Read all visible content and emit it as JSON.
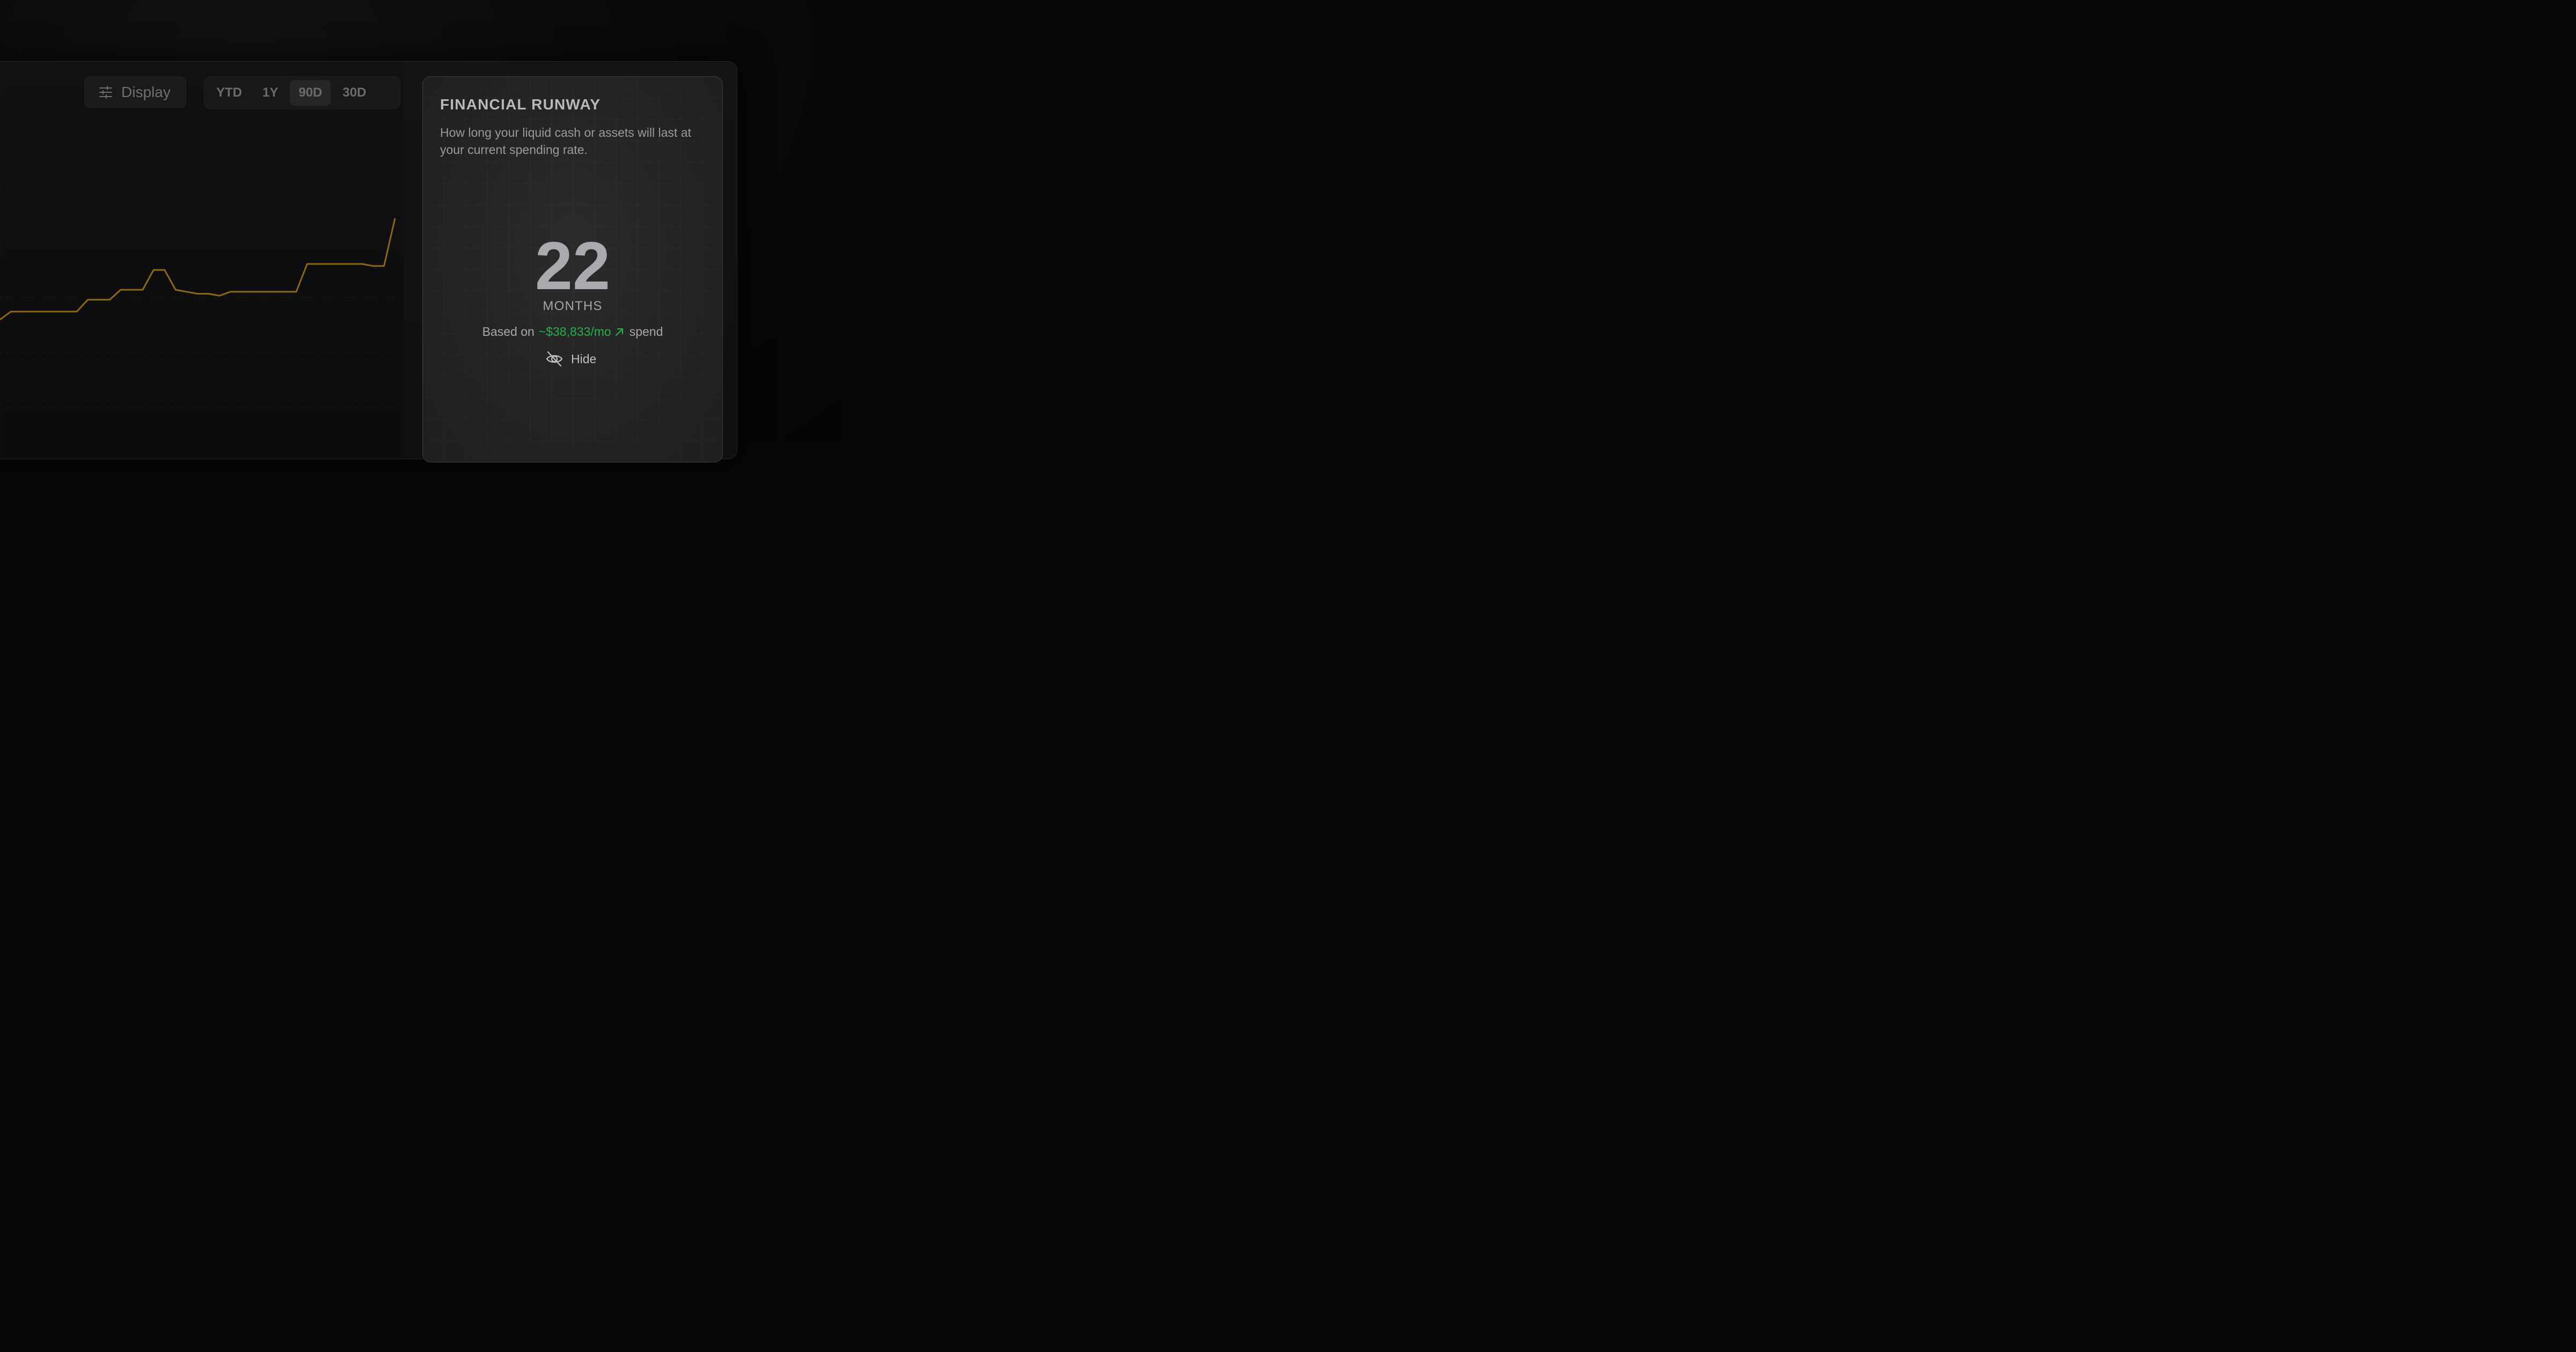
{
  "toolbar": {
    "display_label": "Display",
    "ranges": [
      {
        "label": "YTD",
        "active": false
      },
      {
        "label": "1Y",
        "active": false
      },
      {
        "label": "90D",
        "active": true
      },
      {
        "label": "30D",
        "active": false
      }
    ]
  },
  "chart_data": {
    "type": "line",
    "color": "#8a6a0c",
    "values": [
      0.12,
      0.16,
      0.16,
      0.16,
      0.16,
      0.16,
      0.16,
      0.16,
      0.22,
      0.22,
      0.22,
      0.27,
      0.27,
      0.27,
      0.37,
      0.37,
      0.27,
      0.26,
      0.25,
      0.25,
      0.24,
      0.26,
      0.26,
      0.26,
      0.26,
      0.26,
      0.26,
      0.26,
      0.4,
      0.4,
      0.4,
      0.4,
      0.4,
      0.4,
      0.39,
      0.39,
      0.63
    ]
  },
  "runway": {
    "title": "FINANCIAL RUNWAY",
    "description": "How long your liquid cash or assets will last at your current spending rate.",
    "value": "22",
    "unit": "MONTHS",
    "spend_prefix": "Based on",
    "spend_amount": "~$38,833/mo",
    "spend_suffix": "spend",
    "hide_label": "Hide",
    "accent_color": "#22b14c"
  }
}
